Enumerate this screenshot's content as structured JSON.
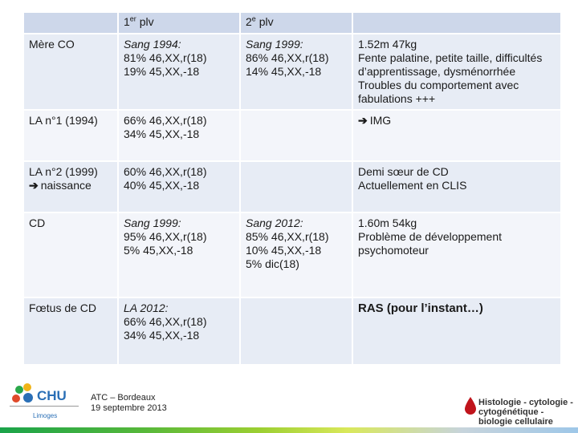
{
  "header": {
    "col0": "",
    "col1": "1",
    "col1_sup": "er",
    "col1_rest": " plv",
    "col2": "2",
    "col2_sup": "e",
    "col2_rest": " plv",
    "col3": ""
  },
  "rows": [
    {
      "label": "Mère CO",
      "label2": "",
      "c1": [
        "Sang 1994:",
        "81% 46,XX,r(18)",
        "19% 45,XX,-18"
      ],
      "c2": [
        "Sang 1999:",
        "86% 46,XX,r(18)",
        "14% 45,XX,-18"
      ],
      "c3": [
        "1.52m 47kg",
        "Fente palatine, petite taille, difficultés d’apprentissage, dysménorrhée",
        "Troubles du comportement avec fabulations +++"
      ]
    },
    {
      "label": "LA n°1 (1994)",
      "label2": "",
      "c1": [
        "66% 46,XX,r(18)",
        "34% 45,XX,-18"
      ],
      "c2": [],
      "c3": [
        "IMG"
      ]
    },
    {
      "label": "LA n°2 (1999)",
      "label2": "naissance",
      "c1": [
        "60% 46,XX,r(18)",
        "40% 45,XX,-18"
      ],
      "c2": [],
      "c3": [
        "Demi sœur de CD",
        "Actuellement en CLIS"
      ]
    },
    {
      "label": "CD",
      "label2": "",
      "c1": [
        "Sang 1999:",
        "95% 46,XX,r(18)",
        "5% 45,XX,-18"
      ],
      "c2": [
        "Sang 2012:",
        "85% 46,XX,r(18)",
        "10% 45,XX,-18",
        "5% dic(18)"
      ],
      "c3": [
        "1.60m 54kg",
        "Problème de développement psychomoteur"
      ]
    },
    {
      "label": "Fœtus de CD",
      "label2": "",
      "c1": [
        "LA 2012:",
        "66% 46,XX,r(18)",
        "34% 45,XX,-18"
      ],
      "c2": [],
      "c3": [
        "RAS (pour l’instant…)"
      ]
    }
  ],
  "footer": {
    "logo_text": "CHU",
    "logo_city": "Limoges",
    "line1": "ATC – Bordeaux",
    "line2": "19 septembre 2013",
    "dept1": "Histologie - cytologie -",
    "dept2": "cytogénétique -",
    "dept3": "biologie cellulaire"
  },
  "colors": {
    "header_bg": "#cdd7ea",
    "row_odd": "#e7ecf5",
    "row_even": "#f3f5fa",
    "logo_blue": "#2a6fb6",
    "drop_red": "#c0141c"
  }
}
